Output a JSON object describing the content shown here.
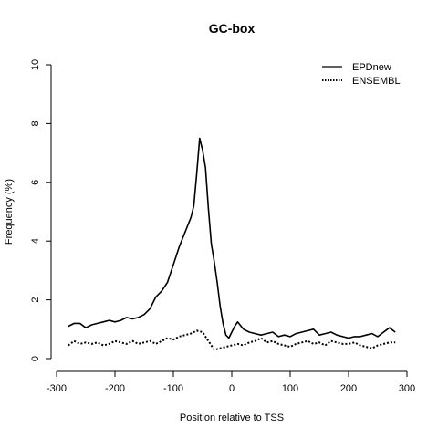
{
  "chart_data": {
    "type": "line",
    "title": "GC-box",
    "xlabel": "Position relative to TSS",
    "ylabel": "Frequency (%)",
    "xlim": [
      -300,
      300
    ],
    "ylim": [
      0,
      10
    ],
    "x_ticks": [
      -300,
      -200,
      -100,
      0,
      100,
      200,
      300
    ],
    "y_ticks": [
      0,
      2,
      4,
      6,
      8,
      10
    ],
    "grid": false,
    "legend_position": "top-right",
    "series": [
      {
        "name": "EPDnew",
        "line_style": "solid",
        "color": "#000000",
        "x": [
          -280,
          -270,
          -260,
          -250,
          -240,
          -230,
          -220,
          -210,
          -200,
          -190,
          -180,
          -170,
          -160,
          -150,
          -140,
          -130,
          -120,
          -110,
          -100,
          -90,
          -80,
          -70,
          -65,
          -60,
          -55,
          -50,
          -45,
          -40,
          -35,
          -30,
          -25,
          -20,
          -15,
          -10,
          -5,
          0,
          5,
          10,
          20,
          30,
          40,
          50,
          60,
          70,
          80,
          90,
          100,
          110,
          120,
          130,
          140,
          150,
          160,
          170,
          180,
          190,
          200,
          210,
          220,
          230,
          240,
          250,
          260,
          270,
          280
        ],
        "y": [
          1.1,
          1.2,
          1.2,
          1.05,
          1.15,
          1.2,
          1.25,
          1.3,
          1.25,
          1.3,
          1.4,
          1.35,
          1.4,
          1.5,
          1.7,
          2.1,
          2.3,
          2.6,
          3.2,
          3.8,
          4.3,
          4.8,
          5.2,
          6.3,
          7.5,
          7.1,
          6.5,
          5.1,
          3.9,
          3.3,
          2.6,
          1.8,
          1.2,
          0.8,
          0.7,
          0.9,
          1.1,
          1.25,
          1.0,
          0.9,
          0.85,
          0.8,
          0.85,
          0.9,
          0.75,
          0.8,
          0.75,
          0.85,
          0.9,
          0.95,
          1.0,
          0.8,
          0.85,
          0.9,
          0.8,
          0.75,
          0.7,
          0.75,
          0.75,
          0.8,
          0.85,
          0.75,
          0.9,
          1.05,
          0.9
        ]
      },
      {
        "name": "ENSEMBL",
        "line_style": "dotted",
        "color": "#000000",
        "x": [
          -280,
          -270,
          -260,
          -250,
          -240,
          -230,
          -220,
          -210,
          -200,
          -190,
          -180,
          -170,
          -160,
          -150,
          -140,
          -130,
          -120,
          -110,
          -100,
          -90,
          -80,
          -70,
          -60,
          -50,
          -40,
          -30,
          -20,
          -10,
          0,
          10,
          20,
          30,
          40,
          50,
          60,
          70,
          80,
          90,
          100,
          110,
          120,
          130,
          140,
          150,
          160,
          170,
          180,
          190,
          200,
          210,
          220,
          230,
          240,
          250,
          260,
          270,
          280
        ],
        "y": [
          0.45,
          0.6,
          0.5,
          0.55,
          0.5,
          0.55,
          0.45,
          0.5,
          0.6,
          0.55,
          0.5,
          0.6,
          0.5,
          0.55,
          0.6,
          0.5,
          0.6,
          0.7,
          0.65,
          0.75,
          0.8,
          0.85,
          0.95,
          0.9,
          0.6,
          0.3,
          0.35,
          0.4,
          0.45,
          0.5,
          0.45,
          0.55,
          0.6,
          0.7,
          0.55,
          0.6,
          0.5,
          0.45,
          0.4,
          0.5,
          0.55,
          0.6,
          0.5,
          0.55,
          0.45,
          0.6,
          0.55,
          0.5,
          0.5,
          0.55,
          0.45,
          0.4,
          0.35,
          0.45,
          0.5,
          0.55,
          0.55
        ]
      }
    ]
  }
}
